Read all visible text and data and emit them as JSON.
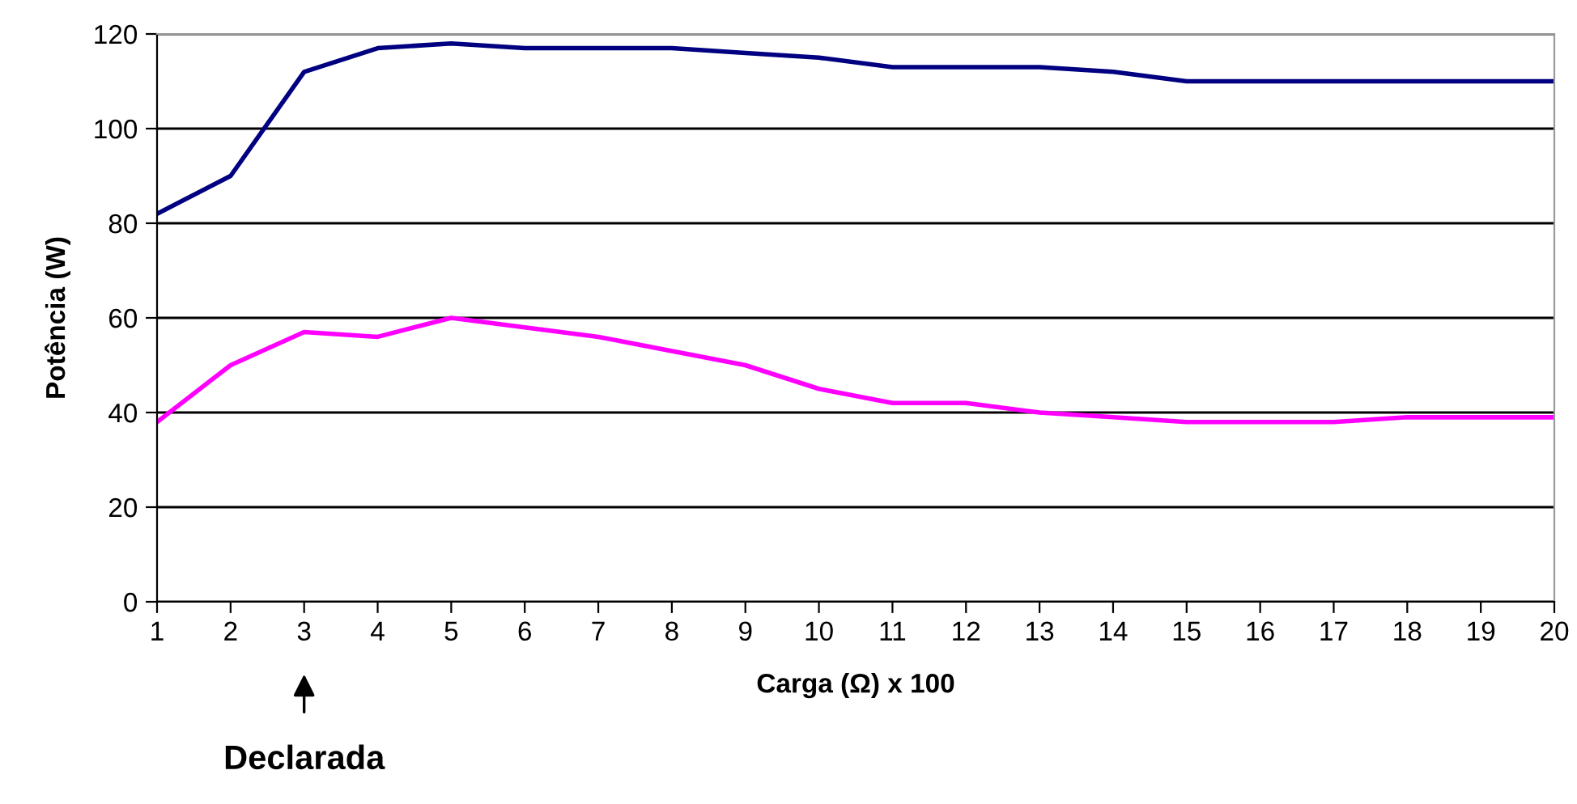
{
  "chart_data": {
    "type": "line",
    "xlabel": "Carga (Ω) x 100",
    "ylabel": "Potência (W)",
    "categories": [
      "1",
      "2",
      "3",
      "4",
      "5",
      "6",
      "7",
      "8",
      "9",
      "10",
      "11",
      "12",
      "13",
      "14",
      "15",
      "16",
      "17",
      "18",
      "19",
      "20"
    ],
    "series": [
      {
        "color": "#000080",
        "values": [
          82,
          90,
          112,
          117,
          118,
          117,
          117,
          117,
          116,
          115,
          113,
          113,
          113,
          112,
          110,
          110,
          110,
          110,
          110,
          110
        ]
      },
      {
        "color": "#ff00ff",
        "values": [
          38,
          50,
          57,
          56,
          60,
          58,
          56,
          53,
          50,
          45,
          42,
          42,
          40,
          39,
          38,
          38,
          38,
          39,
          39,
          39
        ]
      }
    ],
    "ylim": [
      0,
      120
    ],
    "yticks": [
      0,
      20,
      40,
      60,
      80,
      100,
      120
    ],
    "grid": "y",
    "legend": false,
    "marker": "none",
    "line_style": "solid",
    "annotations": [
      {
        "text": "Declarada",
        "x": "3"
      }
    ]
  }
}
